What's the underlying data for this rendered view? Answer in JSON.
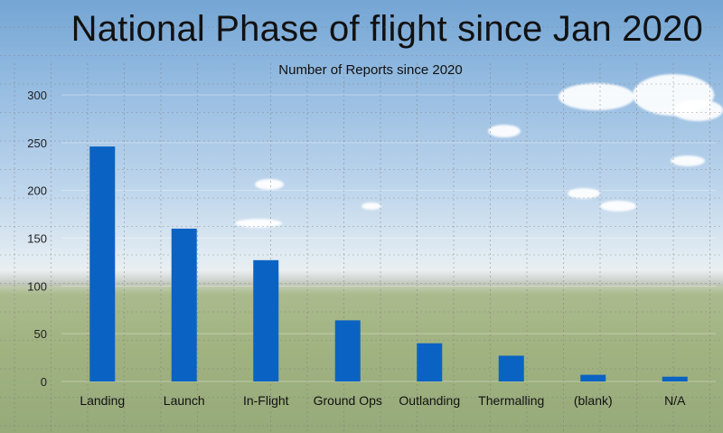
{
  "slide_title": "National Phase of flight since Jan 2020",
  "chart_data": {
    "type": "bar",
    "title": "Number of Reports since 2020",
    "xlabel": "",
    "ylabel": "",
    "categories": [
      "Landing",
      "Launch",
      "In-Flight",
      "Ground Ops",
      "Outlanding",
      "Thermalling",
      "(blank)",
      "N/A"
    ],
    "values": [
      246,
      160,
      127,
      64,
      40,
      27,
      7,
      5
    ],
    "ylim": [
      0,
      300
    ],
    "yticks": [
      0,
      50,
      100,
      150,
      200,
      250,
      300
    ],
    "grid": true,
    "legend": "none",
    "bar_color": "#0a63c2"
  }
}
